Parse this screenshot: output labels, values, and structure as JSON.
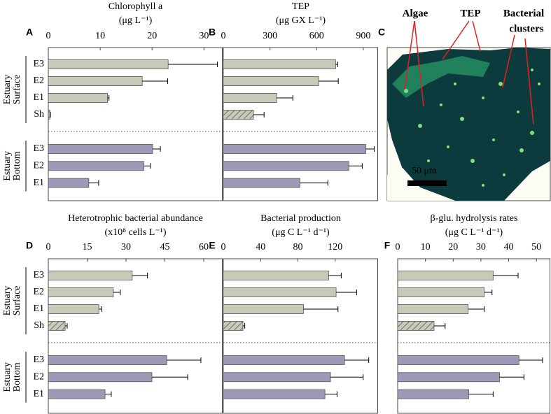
{
  "chart_data": [
    {
      "type": "bar",
      "orientation": "horizontal",
      "panel_label": "A",
      "title": "Chlorophyll a",
      "units": "(μg L⁻¹)",
      "xlim": [
        0,
        33.6
      ],
      "xticks": [
        0,
        10,
        20,
        30
      ],
      "groups": [
        {
          "lines": [
            "Estuary",
            "Surface"
          ],
          "color": "#c9c9b9",
          "categories": [
            "E3",
            "E2",
            "E1",
            "Sh"
          ],
          "values": [
            23.1,
            18.1,
            11.4,
            0.3
          ],
          "errors": [
            9.5,
            4.9,
            0.3,
            0.1
          ],
          "hatched": [
            false,
            false,
            false,
            true
          ]
        },
        {
          "lines": [
            "Estuary",
            "Bottom"
          ],
          "color": "#9b9bb8",
          "categories": [
            "E3",
            "E2",
            "E1"
          ],
          "values": [
            20.1,
            18.4,
            7.8
          ],
          "errors": [
            1.5,
            1.3,
            1.9
          ],
          "hatched": [
            false,
            false,
            false
          ]
        }
      ]
    },
    {
      "type": "bar",
      "orientation": "horizontal",
      "panel_label": "B",
      "title": "TEP",
      "units": "(μg GX L⁻¹)",
      "xlim": [
        0,
        995
      ],
      "xticks": [
        0,
        300,
        600,
        900
      ],
      "groups": [
        {
          "color": "#c9c9b9",
          "values": [
            722,
            613,
            343,
            194
          ],
          "errors": [
            14,
            126,
            104,
            68
          ],
          "hatched": [
            false,
            false,
            false,
            true
          ]
        },
        {
          "color": "#9b9bb8",
          "values": [
            916,
            807,
            492
          ],
          "errors": [
            54,
            86,
            180
          ],
          "hatched": [
            false,
            false,
            false
          ]
        }
      ]
    },
    {
      "type": "bar",
      "orientation": "horizontal",
      "panel_label": "D",
      "title": "Heterotrophic bacterial abundance",
      "units": "(x10⁸ cells L⁻¹)",
      "xlim": [
        0,
        67.3
      ],
      "xticks": [
        0,
        15,
        30,
        45,
        60
      ],
      "groups": [
        {
          "lines": [
            "Estuary",
            "Surface"
          ],
          "color": "#c9c9b9",
          "categories": [
            "E3",
            "E2",
            "E1",
            "Sh"
          ],
          "values": [
            32.4,
            25.1,
            19.5,
            6.5
          ],
          "errors": [
            5.9,
            2.7,
            1.1,
            0.8
          ],
          "hatched": [
            false,
            false,
            false,
            true
          ]
        },
        {
          "lines": [
            "Estuary",
            "Bottom"
          ],
          "color": "#9b9bb8",
          "categories": [
            "E3",
            "E2",
            "E1"
          ],
          "values": [
            45.7,
            40,
            21.9
          ],
          "errors": [
            13.2,
            13.8,
            2.4
          ],
          "hatched": [
            false,
            false,
            false
          ]
        }
      ]
    },
    {
      "type": "bar",
      "orientation": "horizontal",
      "panel_label": "E",
      "title": "Bacterial production",
      "units": "(μg C L⁻¹ d⁻¹)",
      "xlim": [
        0,
        166
      ],
      "xticks": [
        0,
        40,
        80,
        120
      ],
      "groups": [
        {
          "color": "#c9c9b9",
          "values": [
            113,
            121,
            86,
            21
          ],
          "errors": [
            13.5,
            22,
            37,
            2
          ],
          "hatched": [
            false,
            false,
            false,
            true
          ]
        },
        {
          "color": "#9b9bb8",
          "values": [
            130,
            115,
            109
          ],
          "errors": [
            26,
            35,
            13
          ],
          "hatched": [
            false,
            false,
            false
          ]
        }
      ]
    },
    {
      "type": "bar",
      "orientation": "horizontal",
      "panel_label": "F",
      "title": "β-glu. hydrolysis rates",
      "units": "(μg C L⁻¹ d⁻¹)",
      "xlim": [
        0,
        55
      ],
      "xticks": [
        0,
        10,
        20,
        30,
        40,
        50
      ],
      "groups": [
        {
          "color": "#c9c9b9",
          "values": [
            34.4,
            31.2,
            25.4,
            13.1
          ],
          "errors": [
            9,
            2.8,
            5.8,
            4
          ],
          "hatched": [
            false,
            false,
            false,
            true
          ]
        },
        {
          "color": "#9b9bb8",
          "values": [
            43.7,
            36.7,
            25.6
          ],
          "errors": [
            8.5,
            8.8,
            8.8
          ],
          "hatched": [
            false,
            false,
            false
          ]
        }
      ]
    }
  ],
  "image_panel": {
    "panel_label": "C",
    "labels": [
      "Algae",
      "TEP",
      "Bacterial",
      "clusters"
    ],
    "scale_bar": "50 μm"
  }
}
